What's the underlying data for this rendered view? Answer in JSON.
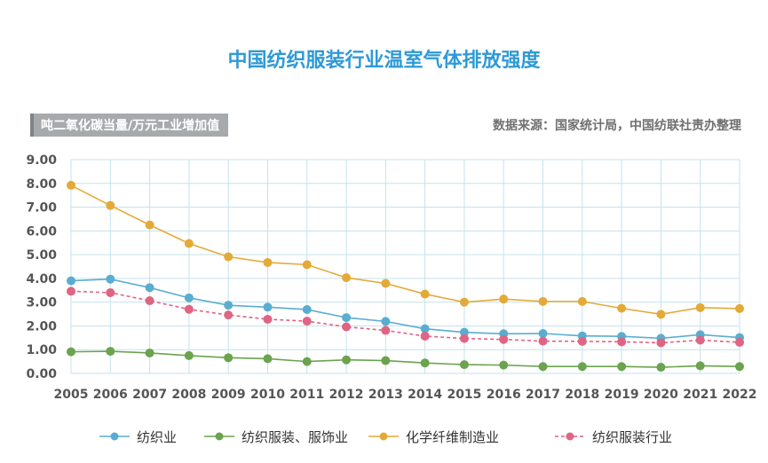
{
  "header": {
    "title": "中国纺织服装行业温室气体排放强度",
    "unit_label": "吨二氧化碳当量/万元工业增加值",
    "source": "数据来源：国家统计局，中国纺联社责办整理"
  },
  "chart_data": {
    "type": "line",
    "title": "中国纺织服装行业温室气体排放强度",
    "ylabel": "吨二氧化碳当量/万元工业增加值",
    "xlabel": "",
    "ylim": [
      0,
      9
    ],
    "y_ticks": [
      "0.00",
      "1.00",
      "2.00",
      "3.00",
      "4.00",
      "5.00",
      "6.00",
      "7.00",
      "8.00",
      "9.00"
    ],
    "x": [
      "2005",
      "2006",
      "2007",
      "2008",
      "2009",
      "2010",
      "2011",
      "2012",
      "2013",
      "2014",
      "2015",
      "2016",
      "2017",
      "2018",
      "2019",
      "2020",
      "2021",
      "2022"
    ],
    "grid": true,
    "legend_position": "bottom",
    "series": [
      {
        "name": "纺织业",
        "color": "#5aadd0",
        "style": "solid",
        "values": [
          3.9,
          3.97,
          3.61,
          3.18,
          2.87,
          2.79,
          2.69,
          2.35,
          2.19,
          1.88,
          1.73,
          1.67,
          1.68,
          1.58,
          1.56,
          1.48,
          1.63,
          1.51
        ]
      },
      {
        "name": "纺织服装、服饰业",
        "color": "#6ba34e",
        "style": "solid",
        "values": [
          0.91,
          0.93,
          0.86,
          0.75,
          0.66,
          0.62,
          0.5,
          0.57,
          0.54,
          0.44,
          0.37,
          0.35,
          0.29,
          0.29,
          0.29,
          0.26,
          0.32,
          0.29
        ]
      },
      {
        "name": "化学纤维制造业",
        "color": "#e4aa38",
        "style": "solid",
        "values": [
          7.92,
          7.07,
          6.25,
          5.47,
          4.91,
          4.67,
          4.58,
          4.03,
          3.79,
          3.34,
          3.0,
          3.13,
          3.03,
          3.03,
          2.74,
          2.49,
          2.77,
          2.73
        ]
      },
      {
        "name": "纺织服装行业",
        "color": "#e06483",
        "style": "dashed",
        "values": [
          3.46,
          3.4,
          3.06,
          2.7,
          2.46,
          2.28,
          2.2,
          1.96,
          1.81,
          1.57,
          1.47,
          1.43,
          1.36,
          1.35,
          1.33,
          1.29,
          1.4,
          1.31
        ]
      }
    ]
  }
}
